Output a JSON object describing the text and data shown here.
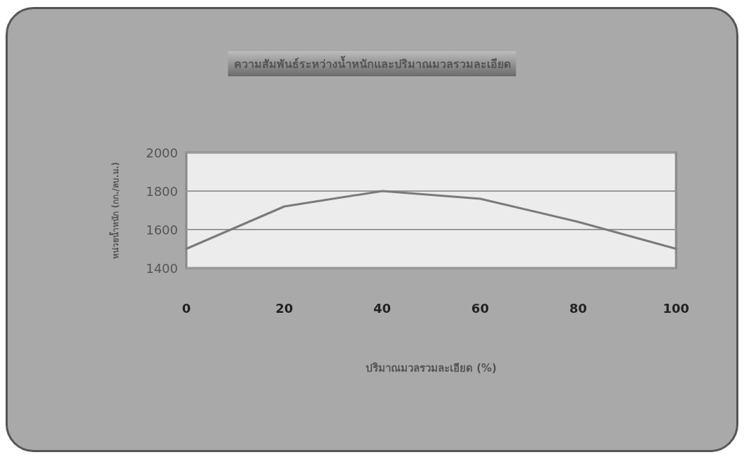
{
  "chart_data": {
    "type": "line",
    "title": "ความสัมพันธ์ระหว่างน้ำหนักและปริมาณมวลรวมละเอียด",
    "xlabel": "ปริมาณมวลรวมละเอียด (%)",
    "ylabel": "หน่วยน้ำหนัก (กก./ลบ.ม.)",
    "x": [
      0,
      20,
      40,
      60,
      80,
      100
    ],
    "series": [
      {
        "color": "#7a7a7a",
        "values": [
          1500,
          1720,
          1800,
          1760,
          1640,
          1500
        ]
      }
    ],
    "xlim": [
      0,
      100
    ],
    "xticks": [
      0,
      20,
      40,
      60,
      80,
      100
    ],
    "ylim": [
      1400,
      2000
    ],
    "yticks": [
      1400,
      1600,
      1800,
      2000
    ],
    "grid": "y",
    "marker": "none",
    "line_style": "solid"
  }
}
